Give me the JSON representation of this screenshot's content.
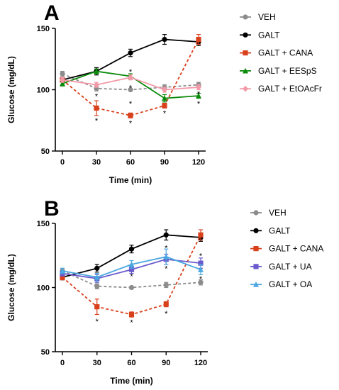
{
  "chart_data": [
    {
      "type": "line",
      "panel_label": "A",
      "xlabel": "Time (min)",
      "ylabel": "Glucose (mg/dL)",
      "x": [
        0,
        30,
        60,
        90,
        120
      ],
      "xticks": [
        "0",
        "30",
        "60",
        "90",
        "120"
      ],
      "yticks": [
        "50",
        "100",
        "150"
      ],
      "ylim": [
        50,
        150
      ],
      "grid": false,
      "legend_position": "right",
      "series": [
        {
          "name": "VEH",
          "color": "#8c8c8c",
          "dashed": true,
          "marker": "circle",
          "values": [
            113,
            101,
            100,
            102,
            104
          ],
          "errors": [
            2,
            2,
            1,
            2,
            2
          ]
        },
        {
          "name": "GALT",
          "color": "#000000",
          "dashed": false,
          "marker": "circle",
          "values": [
            108,
            115,
            130,
            141,
            139
          ],
          "errors": [
            2,
            3,
            3,
            4,
            3
          ]
        },
        {
          "name": "GALT + CANA",
          "color": "#d9401c",
          "dashed": true,
          "marker": "square",
          "values": [
            108,
            85,
            79,
            87,
            141
          ],
          "errors": [
            2,
            6,
            2,
            2,
            4
          ]
        },
        {
          "name": "GALT + EESpS",
          "color": "#0a8a0a",
          "dashed": false,
          "marker": "triangle",
          "values": [
            105,
            115,
            111,
            93,
            95
          ],
          "errors": [
            2,
            2,
            2,
            3,
            2
          ]
        },
        {
          "name": "GALT + EtOAcFr",
          "color": "#f29aa8",
          "dashed": false,
          "marker": "diamond",
          "values": [
            108,
            104,
            110,
            100,
            102
          ],
          "errors": [
            2,
            2,
            2,
            2,
            2
          ]
        }
      ],
      "annotations": [
        {
          "text": "*",
          "x": 30,
          "y": 96
        },
        {
          "text": "*",
          "x": 30,
          "y": 76
        },
        {
          "text": "*",
          "x": 60,
          "y": 116
        },
        {
          "text": "*",
          "x": 60,
          "y": 103
        },
        {
          "text": "*",
          "x": 60,
          "y": 90
        },
        {
          "text": "*",
          "x": 60,
          "y": 74
        },
        {
          "text": "*",
          "x": 90,
          "y": 82
        },
        {
          "text": "*",
          "x": 120,
          "y": 98
        },
        {
          "text": "*",
          "x": 120,
          "y": 90
        }
      ]
    },
    {
      "type": "line",
      "panel_label": "B",
      "xlabel": "Time (min)",
      "ylabel": "Glucose (mg/dL)",
      "x": [
        0,
        30,
        60,
        90,
        120
      ],
      "xticks": [
        "0",
        "30",
        "60",
        "90",
        "120"
      ],
      "yticks": [
        "50",
        "100",
        "150"
      ],
      "ylim": [
        50,
        150
      ],
      "grid": false,
      "legend_position": "right",
      "series": [
        {
          "name": "VEH",
          "color": "#8c8c8c",
          "dashed": true,
          "marker": "circle",
          "values": [
            113,
            101,
            100,
            102,
            104
          ],
          "errors": [
            2,
            2,
            1,
            2,
            2
          ]
        },
        {
          "name": "GALT",
          "color": "#000000",
          "dashed": false,
          "marker": "circle",
          "values": [
            108,
            115,
            130,
            141,
            139
          ],
          "errors": [
            2,
            3,
            3,
            4,
            3
          ]
        },
        {
          "name": "GALT + CANA",
          "color": "#d9401c",
          "dashed": true,
          "marker": "square",
          "values": [
            108,
            85,
            79,
            87,
            141
          ],
          "errors": [
            2,
            6,
            2,
            2,
            4
          ]
        },
        {
          "name": "GALT + UA",
          "color": "#6a5acd",
          "dashed": false,
          "marker": "square",
          "values": [
            111,
            107,
            114,
            122,
            119
          ],
          "errors": [
            2,
            3,
            3,
            4,
            4
          ]
        },
        {
          "name": "GALT + OA",
          "color": "#4aa8e0",
          "dashed": false,
          "marker": "triangle",
          "values": [
            113,
            108,
            118,
            124,
            114
          ],
          "errors": [
            2,
            3,
            3,
            6,
            4
          ]
        }
      ],
      "annotations": [
        {
          "text": "*",
          "x": 30,
          "y": 75
        },
        {
          "text": "*",
          "x": 60,
          "y": 110
        },
        {
          "text": "*",
          "x": 60,
          "y": 74
        },
        {
          "text": "*",
          "x": 90,
          "y": 132
        },
        {
          "text": "*",
          "x": 90,
          "y": 116
        },
        {
          "text": "*",
          "x": 90,
          "y": 81
        },
        {
          "text": "*",
          "x": 120,
          "y": 126
        },
        {
          "text": "*",
          "x": 120,
          "y": 108
        }
      ]
    }
  ]
}
